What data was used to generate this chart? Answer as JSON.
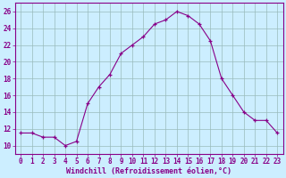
{
  "x": [
    0,
    1,
    2,
    3,
    4,
    5,
    6,
    7,
    8,
    9,
    10,
    11,
    12,
    13,
    14,
    15,
    16,
    17,
    18,
    19,
    20,
    21,
    22,
    23
  ],
  "y": [
    11.5,
    11.5,
    11.0,
    11.0,
    10.0,
    10.5,
    15.0,
    17.0,
    18.5,
    21.0,
    22.0,
    23.0,
    24.5,
    25.0,
    26.0,
    25.5,
    24.5,
    22.5,
    18.0,
    16.0,
    14.0,
    13.0,
    13.0,
    11.5
  ],
  "line_color": "#880088",
  "marker": "+",
  "bg_color": "#cceeff",
  "grid_color": "#99bbbb",
  "xlabel": "Windchill (Refroidissement éolien,°C)",
  "ytick_labels": [
    "10",
    "12",
    "14",
    "16",
    "18",
    "20",
    "22",
    "24",
    "26"
  ],
  "ytick_vals": [
    10,
    12,
    14,
    16,
    18,
    20,
    22,
    24,
    26
  ],
  "xlim": [
    -0.5,
    23.5
  ],
  "ylim": [
    9.0,
    27.0
  ],
  "xlabel_color": "#880088",
  "tick_color": "#880088",
  "spine_color": "#880088",
  "tick_fontsize": 5.5,
  "xlabel_fontsize": 6.0
}
